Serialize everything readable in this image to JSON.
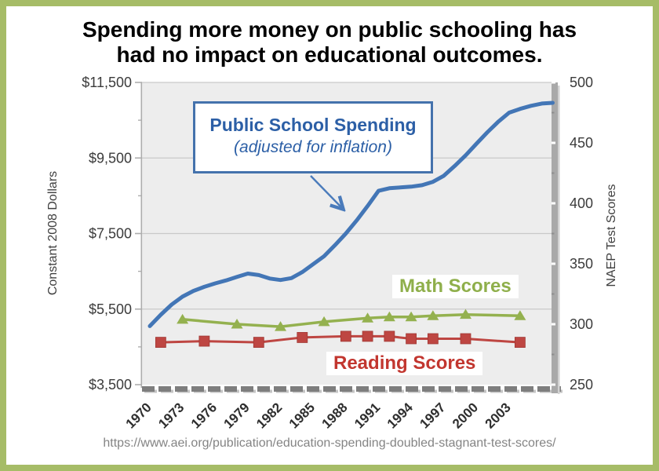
{
  "title": {
    "lines": [
      "Spending more money on public schooling has",
      "had no impact on educational outcomes."
    ]
  },
  "annotation": {
    "line1": "Public School Spending",
    "line2": "(adjusted for inflation)"
  },
  "series_labels": {
    "math": "Math Scores",
    "reading": "Reading Scores"
  },
  "source_url": "https://www.aei.org/publication/education-spending-doubled-stagnant-test-scores/",
  "colors": {
    "frame_border": "#A6BC67",
    "plot_background": "#EDEDED",
    "gridline": "#C9C9C9",
    "left_axis": "#ADADAD",
    "bottom_axis": "#7E7E7E",
    "right_axis_bar": "#A9A9A9",
    "spending_line": "#4376B6",
    "math_line": "#94B14F",
    "reading_line": "#BE4642",
    "annotation_border": "#4472AC",
    "annotation_text": "#2C5FA6",
    "math_label_text": "#8FAF4B",
    "reading_label_text": "#C2362F",
    "tick_label": "#3B3B3B",
    "url_text": "#848484"
  },
  "chart_data": {
    "type": "line",
    "title": "Spending more money on public schooling has had no impact on educational outcomes.",
    "grid": true,
    "legend_position": "inline-labels",
    "x_axis": {
      "tick_labels": [
        "1970",
        "1973",
        "1976",
        "1979",
        "1982",
        "1985",
        "1988",
        "1991",
        "1994",
        "1997",
        "2000",
        "2003"
      ],
      "tick_values": [
        1970,
        1973,
        1976,
        1979,
        1982,
        1985,
        1988,
        1991,
        1994,
        1997,
        2000,
        2003
      ],
      "range": [
        1970,
        2008
      ]
    },
    "y_left": {
      "label": "Constant 2008 Dollars",
      "range": [
        3500,
        11500
      ],
      "tick_labels": [
        "$3,500",
        "$5,500",
        "$7,500",
        "$9,500",
        "$11,500"
      ],
      "tick_values": [
        3500,
        5500,
        7500,
        9500,
        11500
      ],
      "minor_tick_values": [
        4500,
        6500,
        8500,
        10500
      ],
      "gridlines_at": [
        5500,
        7500,
        9500,
        11500
      ]
    },
    "y_right": {
      "label": "NAEP Test Scores",
      "range": [
        250,
        500
      ],
      "tick_labels": [
        "250",
        "300",
        "350",
        "400",
        "450",
        "500"
      ],
      "tick_values": [
        250,
        300,
        350,
        400,
        450,
        500
      ],
      "minor_tick_values": [
        275,
        325,
        375,
        425,
        475
      ]
    },
    "series": [
      {
        "id": "spending",
        "name": "Public School Spending (adjusted for inflation)",
        "axis": "left",
        "color": "#4376B6",
        "marker": "none",
        "line_width": 5,
        "x": [
          1970,
          1971,
          1972,
          1973,
          1974,
          1975,
          1976,
          1977,
          1978,
          1979,
          1980,
          1981,
          1982,
          1983,
          1984,
          1985,
          1986,
          1987,
          1988,
          1989,
          1990,
          1991,
          1992,
          1993,
          1994,
          1995,
          1996,
          1997,
          1998,
          1999,
          2000,
          2001,
          2002,
          2003,
          2004,
          2005,
          2006,
          2007
        ],
        "values": [
          5050,
          5350,
          5620,
          5830,
          5980,
          6090,
          6180,
          6260,
          6350,
          6440,
          6400,
          6310,
          6270,
          6320,
          6480,
          6690,
          6900,
          7190,
          7500,
          7850,
          8230,
          8630,
          8700,
          8720,
          8740,
          8780,
          8870,
          9030,
          9290,
          9570,
          9880,
          10180,
          10460,
          10700,
          10800,
          10880,
          10940,
          10960
        ]
      },
      {
        "id": "math",
        "name": "Math Scores",
        "axis": "right",
        "color": "#94B14F",
        "marker": "triangle",
        "line_width": 3.5,
        "x": [
          1973,
          1978,
          1982,
          1986,
          1990,
          1992,
          1994,
          1996,
          1999,
          2004
        ],
        "values": [
          304,
          300,
          298,
          302,
          305,
          306,
          306,
          307,
          308,
          307
        ]
      },
      {
        "id": "reading",
        "name": "Reading Scores",
        "axis": "right",
        "color": "#BE4642",
        "marker": "square",
        "line_width": 3,
        "x": [
          1971,
          1975,
          1980,
          1984,
          1988,
          1990,
          1992,
          1994,
          1996,
          1999,
          2004
        ],
        "values": [
          285,
          286,
          285,
          289,
          290,
          290,
          290,
          288,
          288,
          288,
          285
        ]
      }
    ]
  }
}
